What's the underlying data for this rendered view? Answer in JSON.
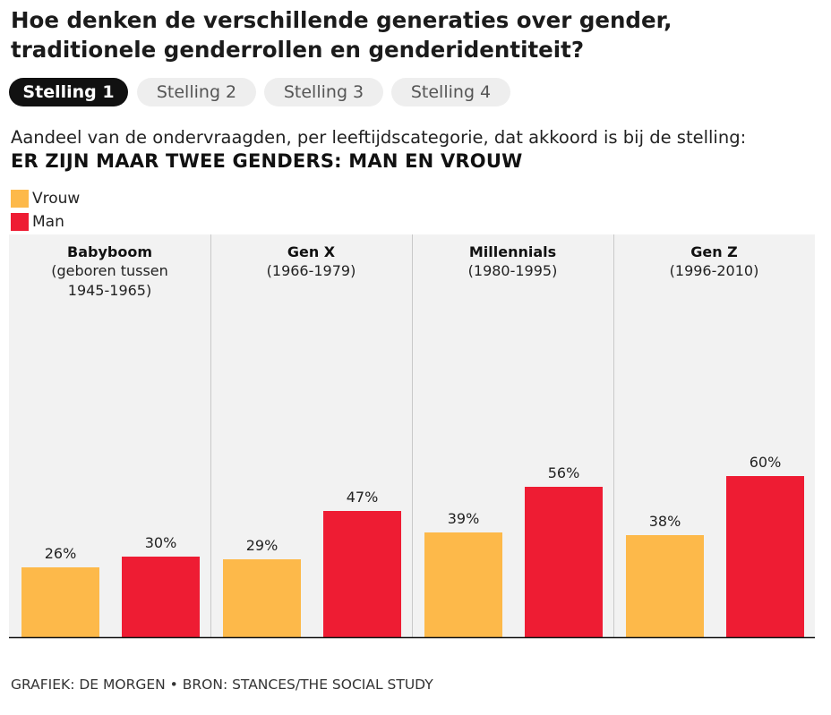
{
  "header": {
    "title_line1": "Hoe denken de verschillende generaties over gender,",
    "title_line2": "traditionele genderrollen en genderidentiteit?"
  },
  "tabs": [
    {
      "label": "Stelling 1",
      "active": true
    },
    {
      "label": "Stelling 2",
      "active": false
    },
    {
      "label": "Stelling 3",
      "active": false
    },
    {
      "label": "Stelling 4",
      "active": false
    }
  ],
  "subtitle": "Aandeel van de ondervraagden, per leeftijdscategorie, dat akkoord is bij de stelling:",
  "statement": "ER ZIJN MAAR TWEE GENDERS: MAN EN VROUW",
  "colors": {
    "vrouw": "#FDB94A",
    "man": "#EE1C33",
    "panel_bg": "#F2F2F2"
  },
  "footer": "GRAFIEK: DE MORGEN • BRON: STANCES/THE SOCIAL STUDY",
  "chart_data": {
    "type": "bar",
    "categories": [
      "Babyboom",
      "Gen X",
      "Millennials",
      "Gen Z"
    ],
    "category_subtitles": [
      [
        "(geboren tussen",
        "1945-1965)"
      ],
      [
        "(1966-1979)"
      ],
      [
        "(1980-1995)"
      ],
      [
        "(1996-2010)"
      ]
    ],
    "series": [
      {
        "name": "Vrouw",
        "values": [
          26,
          29,
          39,
          38
        ],
        "labels": [
          "26%",
          "29%",
          "39%",
          "38%"
        ]
      },
      {
        "name": "Man",
        "values": [
          30,
          47,
          56,
          60
        ],
        "labels": [
          "30%",
          "47%",
          "56%",
          "60%"
        ]
      }
    ],
    "ylim": [
      0,
      100
    ],
    "legend": "top-left"
  }
}
